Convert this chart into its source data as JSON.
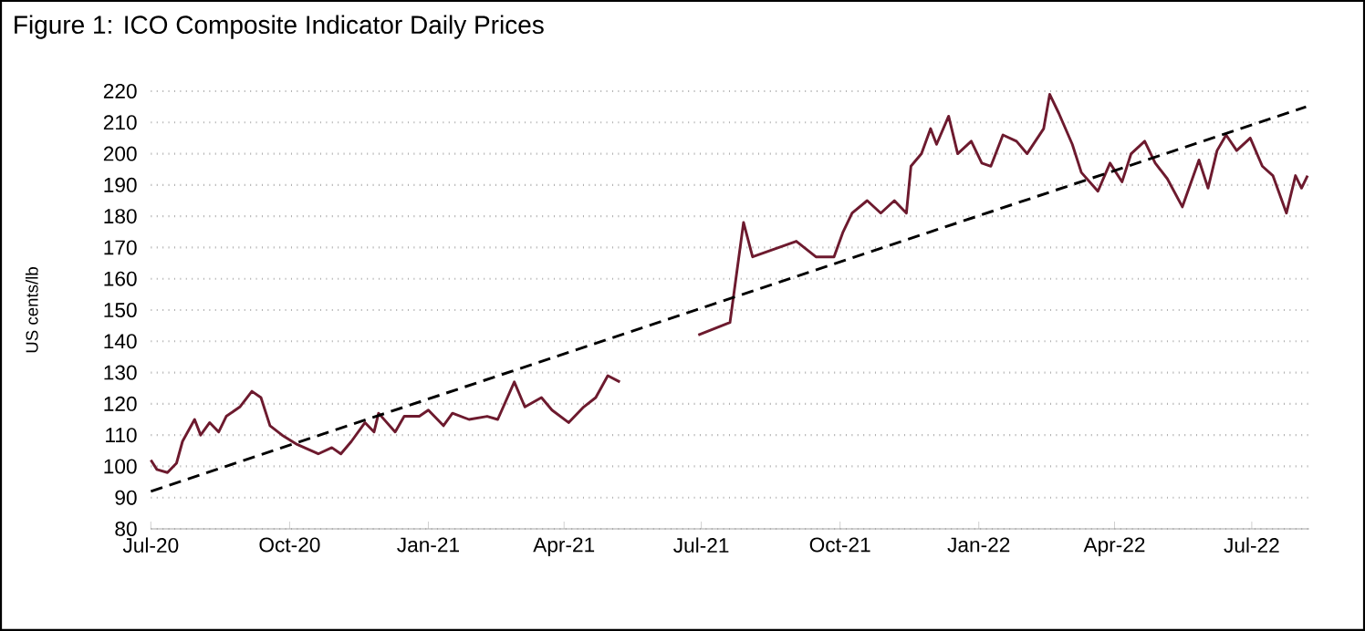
{
  "chart_data": {
    "type": "line",
    "title": "Figure 1: ICO Composite Indicator Daily Prices",
    "ylabel": "US cents/lb",
    "x": [
      "2020-07-01",
      "2020-07-05",
      "2020-07-12",
      "2020-07-18",
      "2020-07-22",
      "2020-07-30",
      "2020-08-03",
      "2020-08-09",
      "2020-08-15",
      "2020-08-20",
      "2020-08-29",
      "2020-09-06",
      "2020-09-12",
      "2020-09-18",
      "2020-09-26",
      "2020-10-06",
      "2020-10-20",
      "2020-10-29",
      "2020-11-04",
      "2020-11-11",
      "2020-11-20",
      "2020-11-26",
      "2020-11-29",
      "2020-12-10",
      "2020-12-16",
      "2020-12-26",
      "2021-01-01",
      "2021-01-11",
      "2021-01-17",
      "2021-01-28",
      "2021-02-09",
      "2021-02-16",
      "2021-02-27",
      "2021-03-06",
      "2021-03-17",
      "2021-03-24",
      "2021-04-04",
      "2021-04-14",
      "2021-04-22",
      "2021-04-30",
      "2021-05-08",
      "2021-06-04",
      "2021-06-29",
      "2021-07-20",
      "2021-07-29",
      "2021-08-04",
      "2021-09-02",
      "2021-09-15",
      "2021-09-27",
      "2021-10-03",
      "2021-10-09",
      "2021-10-19",
      "2021-10-28",
      "2021-11-06",
      "2021-11-14",
      "2021-11-17",
      "2021-11-24",
      "2021-11-30",
      "2021-12-04",
      "2021-12-12",
      "2021-12-18",
      "2021-12-27",
      "2022-01-03",
      "2022-01-09",
      "2022-01-17",
      "2022-01-26",
      "2022-02-02",
      "2022-02-13",
      "2022-02-17",
      "2022-02-23",
      "2022-03-04",
      "2022-03-10",
      "2022-03-21",
      "2022-03-29",
      "2022-04-06",
      "2022-04-12",
      "2022-04-21",
      "2022-04-28",
      "2022-05-06",
      "2022-05-16",
      "2022-05-27",
      "2022-06-02",
      "2022-06-08",
      "2022-06-14",
      "2022-06-21",
      "2022-06-30",
      "2022-07-08",
      "2022-07-15",
      "2022-07-24",
      "2022-07-30",
      "2022-08-03",
      "2022-08-07"
    ],
    "series": [
      {
        "color": "#6d1a2e",
        "values": [
          102,
          99,
          98,
          101,
          108,
          115,
          110,
          114,
          111,
          116,
          119,
          124,
          122,
          113,
          110,
          107,
          104,
          106,
          104,
          108,
          114,
          111,
          117,
          111,
          116,
          116,
          118,
          113,
          117,
          115,
          116,
          115,
          127,
          119,
          122,
          118,
          114,
          119,
          122,
          129,
          127,
          null,
          142,
          146,
          178,
          167,
          172,
          167,
          167,
          175,
          181,
          185,
          181,
          185,
          181,
          196,
          200,
          208,
          203,
          212,
          200,
          204,
          197,
          196,
          206,
          204,
          200,
          208,
          219,
          213,
          203,
          194,
          188,
          197,
          191,
          200,
          204,
          197,
          192,
          183,
          198,
          189,
          201,
          206,
          201,
          205,
          196,
          193,
          181,
          193,
          189,
          193
        ]
      },
      {
        "color": "#000000",
        "line_style": "dashed",
        "x": [
          "2020-07-01",
          "2022-08-06"
        ],
        "values": [
          92,
          215
        ]
      }
    ],
    "xlim": [
      "2020-07-01",
      "2022-08-08"
    ],
    "xticks": [
      {
        "value": "2020-07-01",
        "label": "Jul-20"
      },
      {
        "value": "2020-10-01",
        "label": "Oct-20"
      },
      {
        "value": "2021-01-01",
        "label": "Jan-21"
      },
      {
        "value": "2021-04-01",
        "label": "Apr-21"
      },
      {
        "value": "2021-07-01",
        "label": "Jul-21"
      },
      {
        "value": "2021-10-01",
        "label": "Oct-21"
      },
      {
        "value": "2022-01-01",
        "label": "Jan-22"
      },
      {
        "value": "2022-04-01",
        "label": "Apr-22"
      },
      {
        "value": "2022-07-01",
        "label": "Jul-22"
      }
    ],
    "ylim": [
      80,
      220
    ],
    "yticks": [
      80,
      90,
      100,
      110,
      120,
      130,
      140,
      150,
      160,
      170,
      180,
      190,
      200,
      210,
      220
    ],
    "grid": "y"
  }
}
